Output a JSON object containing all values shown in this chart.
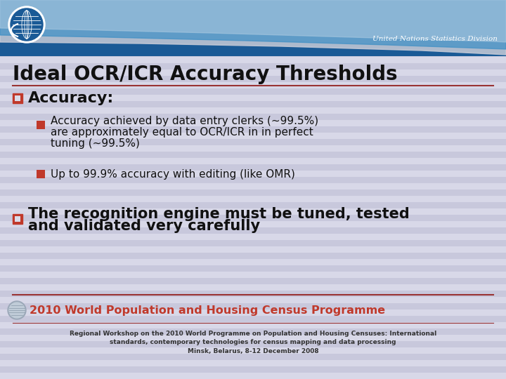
{
  "title": "Ideal OCR/ICR Accuracy Thresholds",
  "un_label": "United Nations Statistics Division",
  "bullet1_label": "Accuracy:",
  "sub_bullet1_l1": "Accuracy achieved by data entry clerks (~99.5%)",
  "sub_bullet1_l2": "are approximately equal to OCR/ICR in in perfect",
  "sub_bullet1_l3": "tuning (~99.5%)",
  "sub_bullet2": "Up to 99.9% accuracy with editing (like OMR)",
  "bullet2_l1": "The recognition engine must be tuned, tested",
  "bullet2_l2": "and validated very carefully",
  "footer_title": "2010 World Population and Housing Census Programme",
  "footer_line1": "Regional Workshop on the 2010 World Programme on Population and Housing Censuses: International",
  "footer_line2": "standards, contemporary technologies for census mapping and data processing",
  "footer_line3": "Minsk, Belarus, 8-12 December 2008",
  "bg_color": "#dcdce8",
  "header_dark_blue": "#1a5a96",
  "header_mid_blue": "#3d8fc5",
  "header_light_blue": "#a8c8e0",
  "header_silver": "#c8ccd8",
  "title_color": "#111111",
  "bullet_red": "#c0392b",
  "text_color": "#111111",
  "footer_title_color": "#c0392b",
  "footer_text_color": "#333333",
  "sep_color": "#993333",
  "un_text_color": "#ffffff",
  "stripe_light": "#d8d8e8",
  "stripe_dark": "#c8c8dc"
}
